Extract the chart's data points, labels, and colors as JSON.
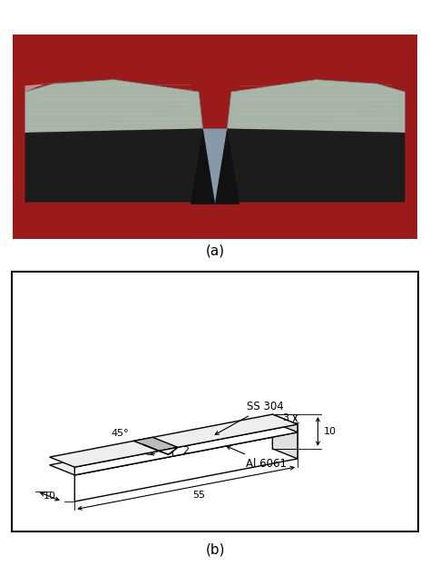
{
  "title_a": "(a)",
  "title_b": "(b)",
  "bg_color": "#ffffff",
  "label_ss304": "SS 304",
  "label_al6061": "Al 6061",
  "dim_55": "55",
  "dim_10_bottom": "10",
  "dim_10_right": "10",
  "dim_3": "3",
  "dim_2": "2",
  "angle_label": "45°",
  "photo_bg_color": "#9b1b1b",
  "metal_top_color": "#a8b4a8",
  "metal_side_color": "#1c1c1c",
  "notch_highlight": "#8899aa",
  "white": "#ffffff",
  "black": "#000000"
}
